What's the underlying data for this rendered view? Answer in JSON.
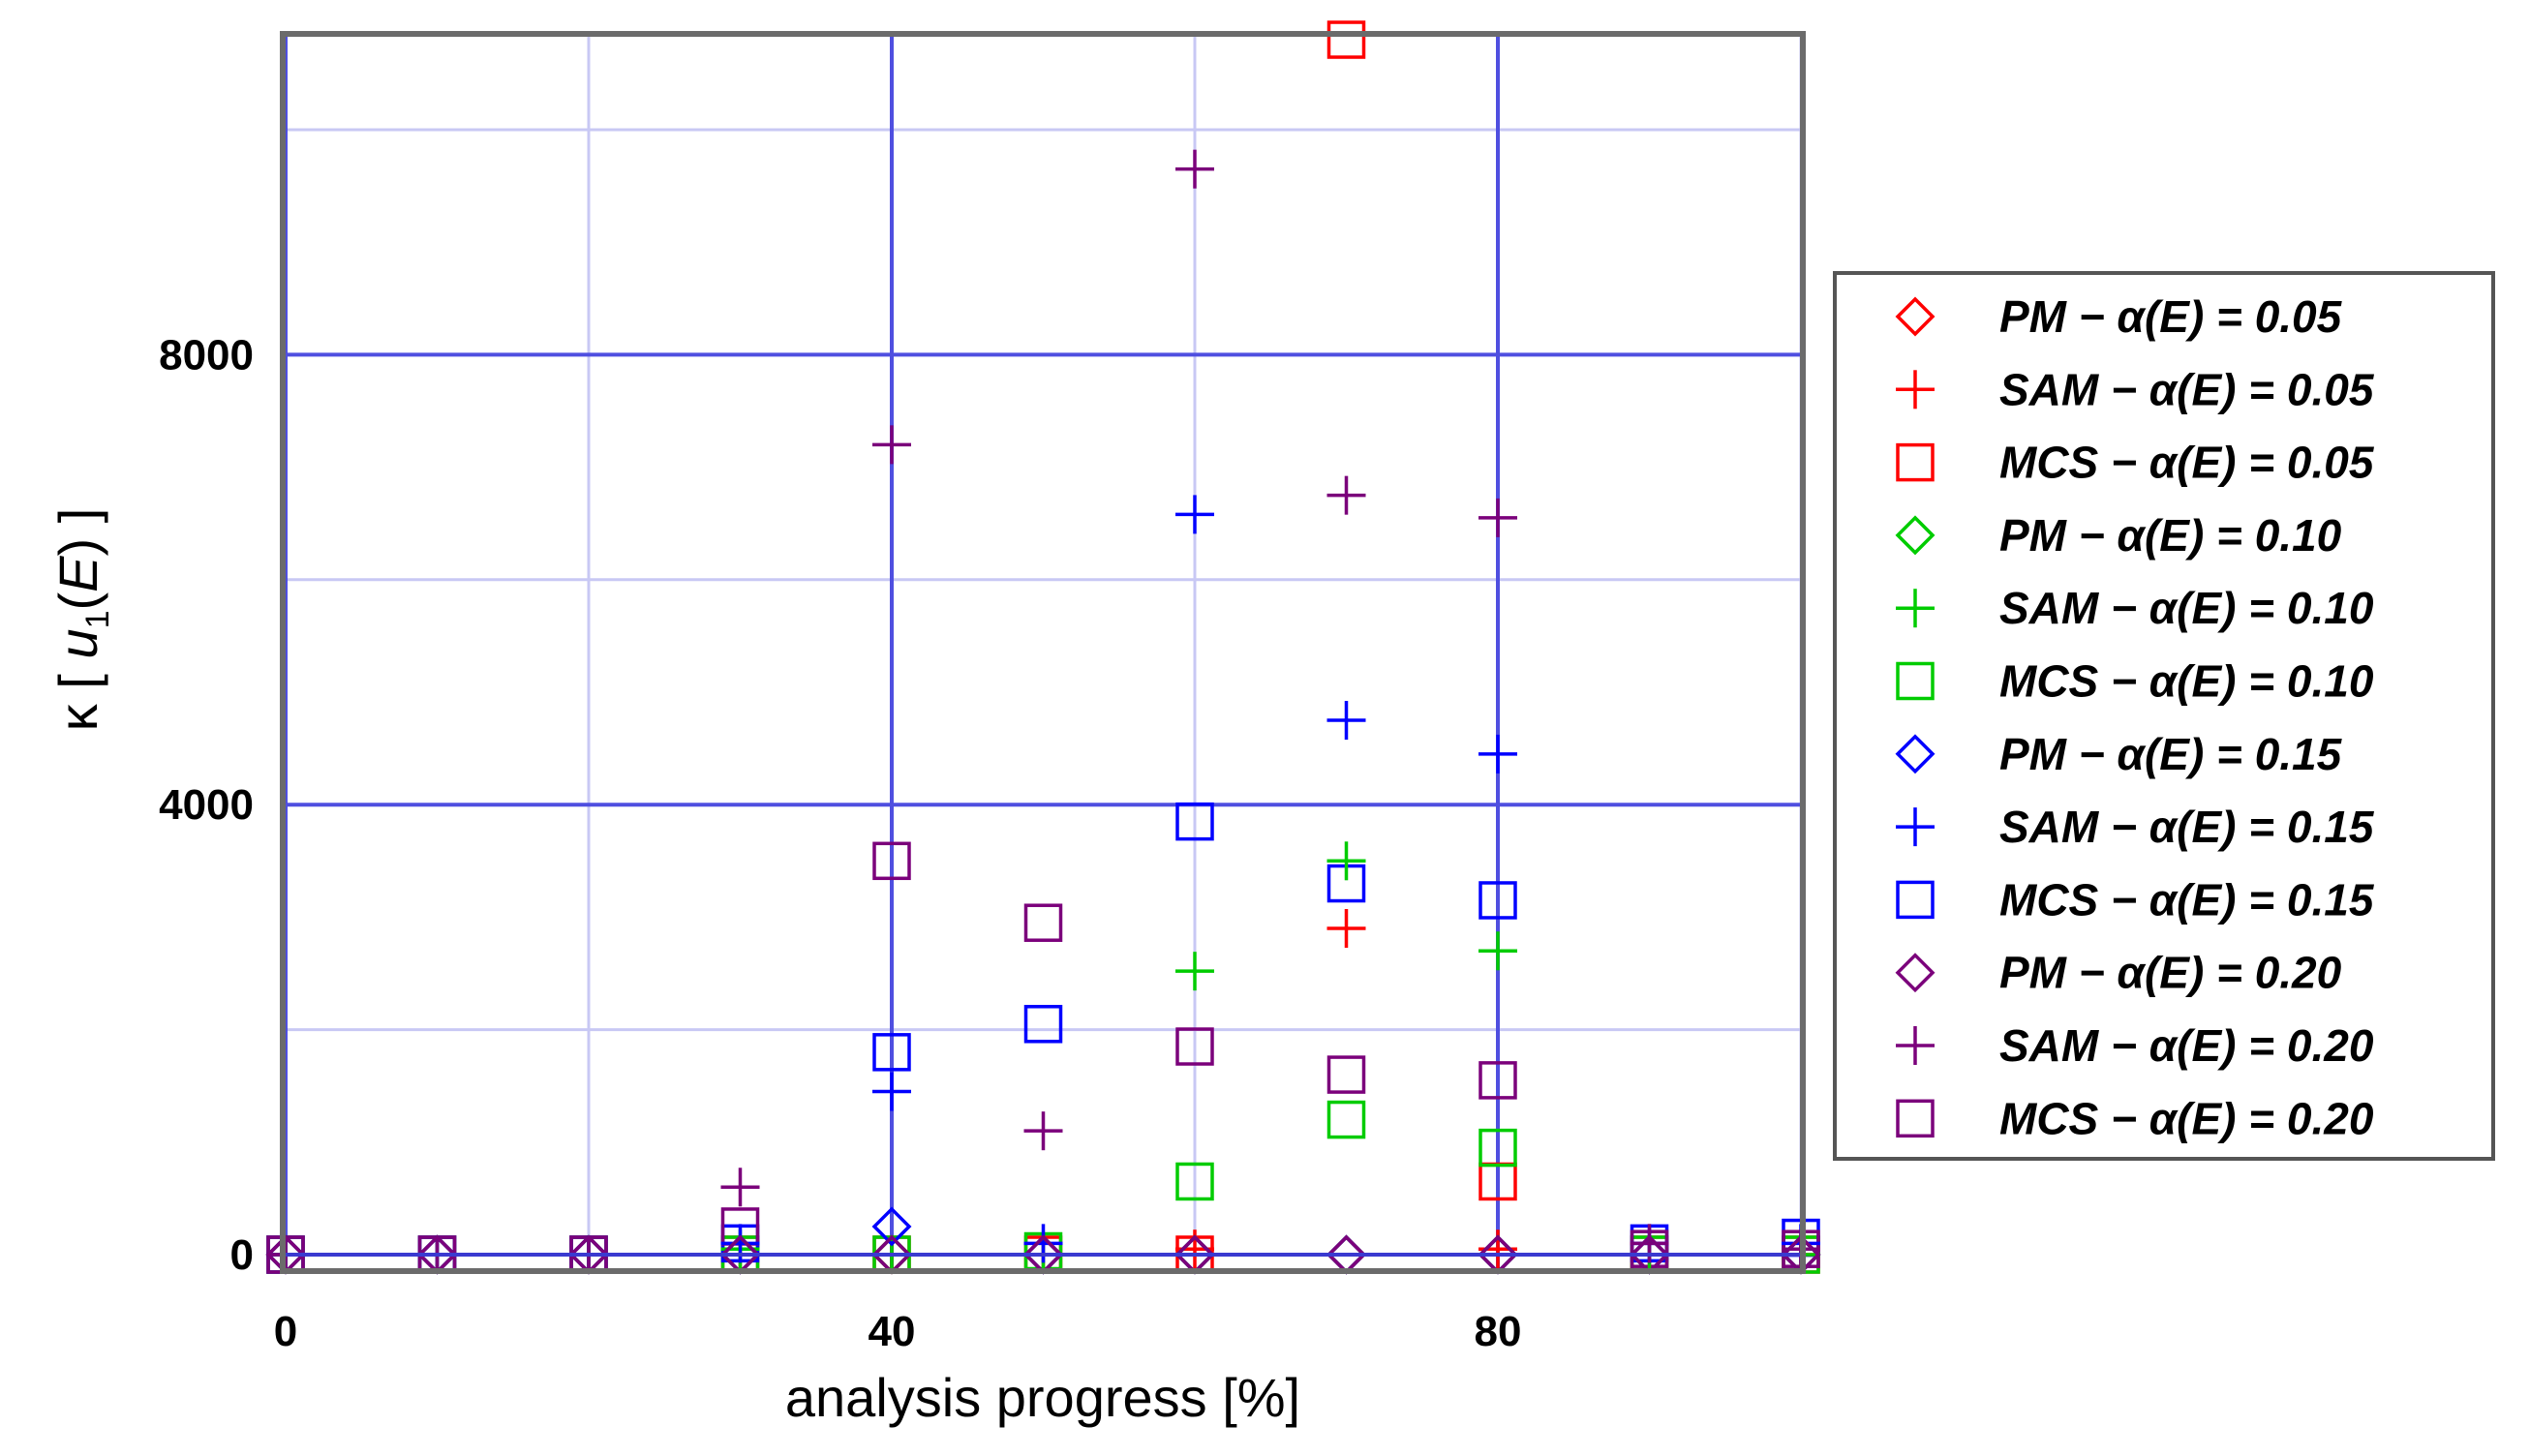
{
  "chart_data": {
    "type": "scatter",
    "title": "",
    "xlabel": "analysis progress [%]",
    "ylabel": "κ [ u1 ( E ) ]",
    "ylabel_parts": {
      "prefix": "κ [ ",
      "var": "u",
      "sub": "1",
      "paren": "(",
      "arg": "E",
      "close": ") ]"
    },
    "xlim": [
      0,
      100
    ],
    "ylim": [
      -100,
      10800
    ],
    "x_ticks": [
      0,
      40,
      80
    ],
    "y_ticks": [
      0,
      4000,
      8000
    ],
    "x_grid_minor": [
      20,
      60,
      100
    ],
    "y_grid_minor": [
      2000,
      6000,
      10000
    ],
    "grid": true,
    "legend_position": "right",
    "x": [
      0,
      10,
      20,
      30,
      40,
      50,
      60,
      70,
      80,
      90,
      100
    ],
    "series": [
      {
        "name": "PM − α(E) = 0.05",
        "marker": "diamond",
        "color": "#ff0000",
        "values": [
          0,
          0,
          0,
          0,
          0,
          0,
          0,
          0,
          0,
          0,
          0
        ]
      },
      {
        "name": "SAM − α(E) = 0.05",
        "marker": "plus",
        "color": "#ff0000",
        "values": [
          0,
          0,
          0,
          0,
          0,
          0,
          50,
          2900,
          50,
          0,
          0
        ]
      },
      {
        "name": "MCS − α(E) = 0.05",
        "marker": "square",
        "color": "#ff0000",
        "values": [
          0,
          0,
          0,
          0,
          0,
          0,
          0,
          10800,
          650,
          0,
          0
        ]
      },
      {
        "name": "PM − α(E) = 0.10",
        "marker": "diamond",
        "color": "#00cc00",
        "values": [
          0,
          0,
          0,
          0,
          0,
          0,
          0,
          0,
          0,
          0,
          0
        ]
      },
      {
        "name": "SAM − α(E) = 0.10",
        "marker": "plus",
        "color": "#00cc00",
        "values": [
          0,
          0,
          0,
          50,
          0,
          0,
          2520,
          3500,
          2700,
          0,
          0
        ]
      },
      {
        "name": "MCS − α(E) = 0.10",
        "marker": "square",
        "color": "#00cc00",
        "values": [
          0,
          0,
          0,
          0,
          0,
          30,
          650,
          1200,
          950,
          0,
          0
        ]
      },
      {
        "name": "PM − α(E) = 0.15",
        "marker": "diamond",
        "color": "#0000ff",
        "values": [
          0,
          0,
          0,
          0,
          250,
          0,
          0,
          0,
          0,
          0,
          0
        ]
      },
      {
        "name": "SAM − α(E) = 0.15",
        "marker": "plus",
        "color": "#0000ff",
        "values": [
          0,
          0,
          0,
          100,
          1450,
          100,
          6580,
          4750,
          4450,
          100,
          100
        ]
      },
      {
        "name": "MCS − α(E) = 0.15",
        "marker": "square",
        "color": "#0000ff",
        "values": [
          0,
          0,
          0,
          100,
          1800,
          2050,
          3850,
          3300,
          3150,
          100,
          150
        ]
      },
      {
        "name": "PM − α(E) = 0.20",
        "marker": "diamond",
        "color": "#7b007b",
        "values": [
          0,
          0,
          0,
          0,
          0,
          0,
          0,
          0,
          0,
          0,
          0
        ]
      },
      {
        "name": "SAM − α(E) = 0.20",
        "marker": "plus",
        "color": "#7b007b",
        "values": [
          0,
          0,
          0,
          600,
          7200,
          1100,
          9650,
          6750,
          6550,
          100,
          50
        ]
      },
      {
        "name": "MCS − α(E) = 0.20",
        "marker": "square",
        "color": "#7b007b",
        "values": [
          0,
          0,
          0,
          250,
          3500,
          2950,
          1850,
          1600,
          1550,
          50,
          50
        ]
      }
    ]
  }
}
